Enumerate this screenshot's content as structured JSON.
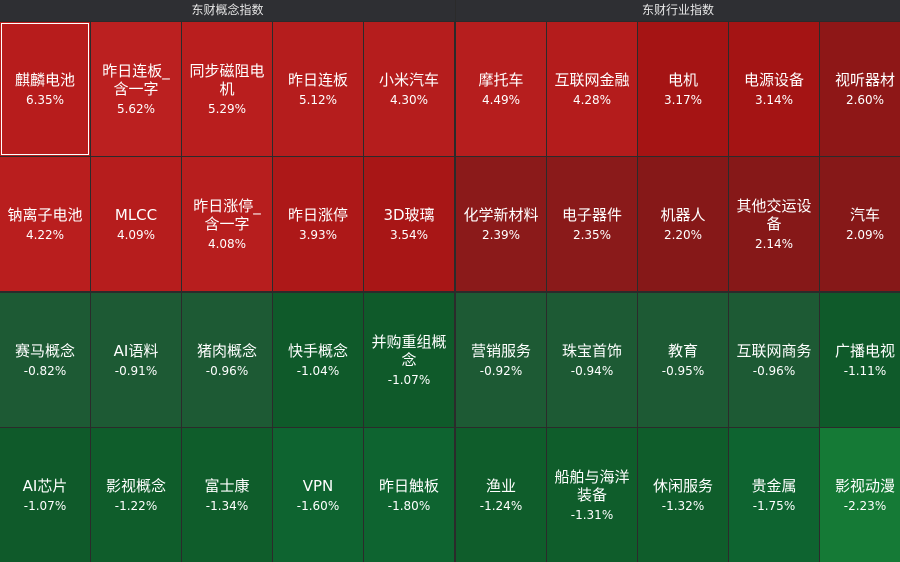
{
  "headers": {
    "concept": "东财概念指数",
    "industry": "东财行业指数"
  },
  "tiles": [
    {
      "name": "麒麟电池",
      "pct": "6.35%",
      "color": "#b71c1c"
    },
    {
      "name": "昨日连板_含一字",
      "pct": "5.62%",
      "color": "#bb2020"
    },
    {
      "name": "同步磁阻电机",
      "pct": "5.29%",
      "color": "#b91e1e"
    },
    {
      "name": "昨日连板",
      "pct": "5.12%",
      "color": "#b51d1d"
    },
    {
      "name": "小米汽车",
      "pct": "4.30%",
      "color": "#b51d1d"
    },
    {
      "name": "摩托车",
      "pct": "4.49%",
      "color": "#b61e1e"
    },
    {
      "name": "互联网金融",
      "pct": "4.28%",
      "color": "#b41c1c"
    },
    {
      "name": "电机",
      "pct": "3.17%",
      "color": "#a51414"
    },
    {
      "name": "电源设备",
      "pct": "3.14%",
      "color": "#a41414"
    },
    {
      "name": "视听器材",
      "pct": "2.60%",
      "color": "#8e1717"
    },
    {
      "name": "钠离子电池",
      "pct": "4.22%",
      "color": "#b91e1e"
    },
    {
      "name": "MLCC",
      "pct": "4.09%",
      "color": "#b61d1d"
    },
    {
      "name": "昨日涨停_含一字",
      "pct": "4.08%",
      "color": "#b71e1e"
    },
    {
      "name": "昨日涨停",
      "pct": "3.93%",
      "color": "#ad1818"
    },
    {
      "name": "3D玻璃",
      "pct": "3.54%",
      "color": "#a81616"
    },
    {
      "name": "化学新材料",
      "pct": "2.39%",
      "color": "#8b1a1a"
    },
    {
      "name": "电子器件",
      "pct": "2.35%",
      "color": "#8a1a1a"
    },
    {
      "name": "机器人",
      "pct": "2.20%",
      "color": "#861818"
    },
    {
      "name": "其他交运设备",
      "pct": "2.14%",
      "color": "#861818"
    },
    {
      "name": "汽车",
      "pct": "2.09%",
      "color": "#861818"
    },
    {
      "name": "赛马概念",
      "pct": "-0.82%",
      "color": "#1d5a34"
    },
    {
      "name": "AI语料",
      "pct": "-0.91%",
      "color": "#1d5a34"
    },
    {
      "name": "猪肉概念",
      "pct": "-0.96%",
      "color": "#1d5a34"
    },
    {
      "name": "快手概念",
      "pct": "-1.04%",
      "color": "#0f5a2a"
    },
    {
      "name": "并购重组概念",
      "pct": "-1.07%",
      "color": "#0f5a2a"
    },
    {
      "name": "营销服务",
      "pct": "-0.92%",
      "color": "#1d5a34"
    },
    {
      "name": "珠宝首饰",
      "pct": "-0.94%",
      "color": "#1d5a34"
    },
    {
      "name": "教育",
      "pct": "-0.95%",
      "color": "#1d5a34"
    },
    {
      "name": "互联网商务",
      "pct": "-0.96%",
      "color": "#1d5a34"
    },
    {
      "name": "广播电视",
      "pct": "-1.11%",
      "color": "#0f5a2a"
    },
    {
      "name": "AI芯片",
      "pct": "-1.07%",
      "color": "#0f5a2a"
    },
    {
      "name": "影视概念",
      "pct": "-1.22%",
      "color": "#0f5d2b"
    },
    {
      "name": "富士康",
      "pct": "-1.34%",
      "color": "#0f5d2b"
    },
    {
      "name": "VPN",
      "pct": "-1.60%",
      "color": "#0e6430"
    },
    {
      "name": "昨日触板",
      "pct": "-1.80%",
      "color": "#0e6430"
    },
    {
      "name": "渔业",
      "pct": "-1.24%",
      "color": "#0f5d2b"
    },
    {
      "name": "船舶与海洋装备",
      "pct": "-1.31%",
      "color": "#0f5d2b"
    },
    {
      "name": "休闲服务",
      "pct": "-1.32%",
      "color": "#0f5d2b"
    },
    {
      "name": "贵金属",
      "pct": "-1.75%",
      "color": "#0e6430"
    },
    {
      "name": "影视动漫",
      "pct": "-2.23%",
      "color": "#157a36"
    }
  ]
}
